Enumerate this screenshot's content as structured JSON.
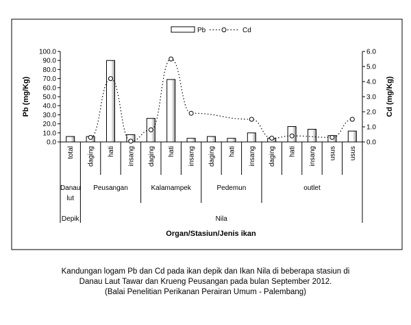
{
  "legend": {
    "pb": "Pb",
    "cd": "Cd"
  },
  "chart_data": {
    "type": "bar",
    "title": "",
    "xlabel": "Organ/Stasiun/Jenis ikan",
    "ylabel": "Pb (mg/Kg)",
    "y2label": "Cd (mg/Kg)",
    "ylim": [
      0,
      100
    ],
    "y2lim": [
      0,
      6
    ],
    "yticks": [
      "0.0",
      "10.0",
      "20.0",
      "30.0",
      "40.0",
      "50.0",
      "60.0",
      "70.0",
      "80.0",
      "90.0",
      "100.0"
    ],
    "y2ticks": [
      "0.0",
      "1.0",
      "2.0",
      "3.0",
      "4.0",
      "5.0",
      "6.0"
    ],
    "categories": [
      "total",
      "daging",
      "hati",
      "insang",
      "daging",
      "hati",
      "insang",
      "daging",
      "hati",
      "insang",
      "daging",
      "hati",
      "insang",
      "usus",
      "usus"
    ],
    "series": [
      {
        "name": "Pb",
        "axis": "left",
        "type": "bar",
        "values": [
          6,
          6,
          90,
          8,
          26,
          69,
          4,
          6,
          4,
          10,
          4,
          17,
          14,
          7,
          12
        ]
      },
      {
        "name": "Cd",
        "axis": "right",
        "type": "line-dotted",
        "values": [
          null,
          0.3,
          4.2,
          0.05,
          0.8,
          5.5,
          1.9,
          null,
          null,
          1.5,
          0.25,
          0.4,
          null,
          0.3,
          1.5
        ]
      }
    ],
    "stations": [
      {
        "label": "Danau lut",
        "lines": [
          "Danau",
          "lut"
        ],
        "span": [
          0,
          0
        ]
      },
      {
        "label": "Peusangan",
        "span": [
          1,
          3
        ]
      },
      {
        "label": "Kalamampek",
        "span": [
          4,
          6
        ]
      },
      {
        "label": "Pedemun",
        "span": [
          7,
          9
        ]
      },
      {
        "label": "outlet",
        "span": [
          10,
          14
        ]
      }
    ],
    "fish": [
      {
        "label": "Depik",
        "span": [
          0,
          0
        ]
      },
      {
        "label": "Nila",
        "span": [
          1,
          14
        ]
      }
    ],
    "grid": false,
    "legend_position": "top-center"
  },
  "caption": {
    "line1": "Kandungan logam Pb dan Cd  pada ikan depik dan Ikan Nila di beberapa stasiun di",
    "line2": "Danau Laut Tawar dan Krueng Peusangan pada bulan September 2012.",
    "line3": "(Balai Penelitian Perikanan Perairan Umum - Palembang)"
  }
}
